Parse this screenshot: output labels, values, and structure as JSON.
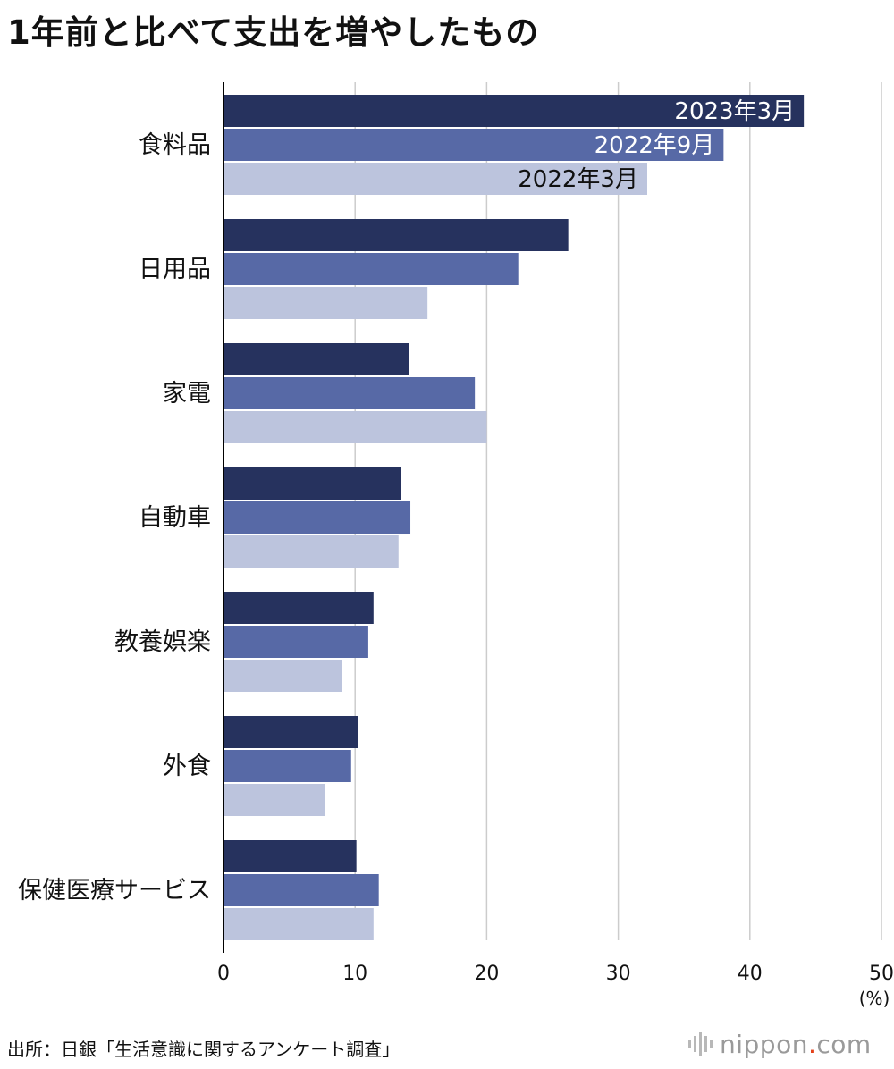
{
  "title": "1年前と比べて支出を増やしたもの",
  "source": "出所：日銀「生活意識に関するアンケート調査」",
  "logo": {
    "text": "nippon",
    "dot": ".",
    "suffix": "com",
    "icon": "nippon-com-logo"
  },
  "colors": {
    "s2023_03": "#26325e",
    "s2022_09": "#5769a6",
    "s2022_03": "#bcc4dd",
    "grid": "#cccccc",
    "axis": "#000000",
    "logo_dot": "#e4411b"
  },
  "chart_data": {
    "type": "bar",
    "orientation": "horizontal",
    "categories": [
      "食料品",
      "日用品",
      "家電",
      "自動車",
      "教養娯楽",
      "外食",
      "保健医療サービス"
    ],
    "series": [
      {
        "name": "2023年3月",
        "values": [
          44.1,
          26.2,
          14.1,
          13.5,
          11.4,
          10.2,
          10.1
        ]
      },
      {
        "name": "2022年9月",
        "values": [
          38.0,
          22.4,
          19.1,
          14.2,
          11.0,
          9.7,
          11.8
        ]
      },
      {
        "name": "2022年3月",
        "values": [
          32.2,
          15.5,
          20.0,
          13.3,
          9.0,
          7.7,
          11.4
        ]
      }
    ],
    "xlim": [
      0,
      50
    ],
    "xticks": [
      0,
      10,
      20,
      30,
      40,
      50
    ],
    "unit": "(%)",
    "grid": true,
    "legend": "inside-bars"
  }
}
